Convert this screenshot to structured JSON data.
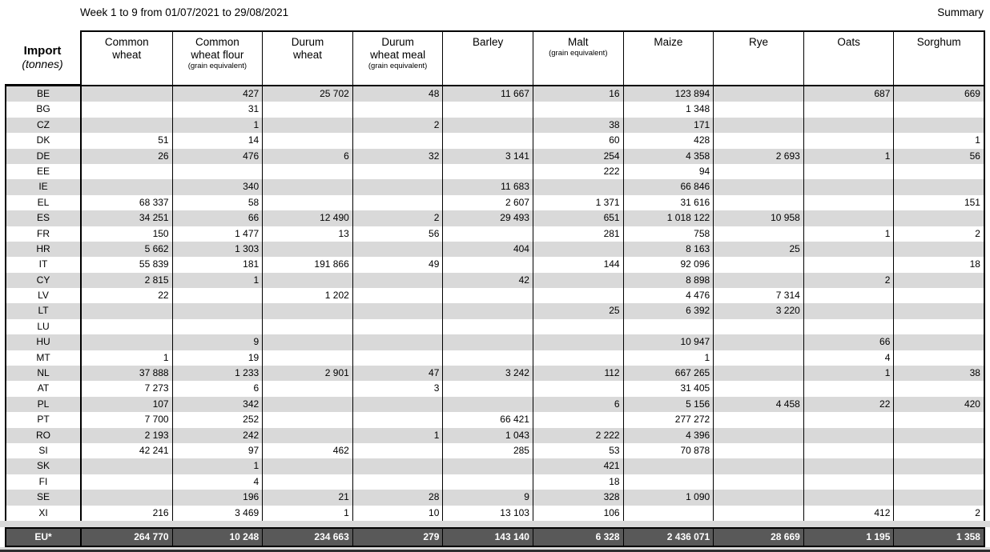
{
  "page": {
    "title": "Week 1 to 9 from 01/07/2021 to 29/08/2021",
    "summary": "Summary"
  },
  "table": {
    "corner_title": "Import",
    "corner_unit": "(tonnes)",
    "columns": [
      {
        "label": "Common\nwheat",
        "sub": ""
      },
      {
        "label": "Common\nwheat flour",
        "sub": "(grain equivalent)"
      },
      {
        "label": "Durum\nwheat",
        "sub": ""
      },
      {
        "label": "Durum\nwheat meal",
        "sub": "(grain equivalent)"
      },
      {
        "label": "Barley",
        "sub": ""
      },
      {
        "label": "Malt",
        "sub": "(grain equivalent)"
      },
      {
        "label": "Maize",
        "sub": ""
      },
      {
        "label": "Rye",
        "sub": ""
      },
      {
        "label": "Oats",
        "sub": ""
      },
      {
        "label": "Sorghum",
        "sub": ""
      }
    ],
    "rows": [
      {
        "code": "BE",
        "values": [
          "",
          "427",
          "25 702",
          "48",
          "11 667",
          "16",
          "123 894",
          "",
          "687",
          "669"
        ]
      },
      {
        "code": "BG",
        "values": [
          "",
          "31",
          "",
          "",
          "",
          "",
          "1 348",
          "",
          "",
          ""
        ]
      },
      {
        "code": "CZ",
        "values": [
          "",
          "1",
          "",
          "2",
          "",
          "38",
          "171",
          "",
          "",
          ""
        ]
      },
      {
        "code": "DK",
        "values": [
          "51",
          "14",
          "",
          "",
          "",
          "60",
          "428",
          "",
          "",
          "1"
        ]
      },
      {
        "code": "DE",
        "values": [
          "26",
          "476",
          "6",
          "32",
          "3 141",
          "254",
          "4 358",
          "2 693",
          "1",
          "56"
        ]
      },
      {
        "code": "EE",
        "values": [
          "",
          "",
          "",
          "",
          "",
          "222",
          "94",
          "",
          "",
          ""
        ]
      },
      {
        "code": "IE",
        "values": [
          "",
          "340",
          "",
          "",
          "11 683",
          "",
          "66 846",
          "",
          "",
          ""
        ]
      },
      {
        "code": "EL",
        "values": [
          "68 337",
          "58",
          "",
          "",
          "2 607",
          "1 371",
          "31 616",
          "",
          "",
          "151"
        ]
      },
      {
        "code": "ES",
        "values": [
          "34 251",
          "66",
          "12 490",
          "2",
          "29 493",
          "651",
          "1 018 122",
          "10 958",
          "",
          ""
        ]
      },
      {
        "code": "FR",
        "values": [
          "150",
          "1 477",
          "13",
          "56",
          "",
          "281",
          "758",
          "",
          "1",
          "2"
        ]
      },
      {
        "code": "HR",
        "values": [
          "5 662",
          "1 303",
          "",
          "",
          "404",
          "",
          "8 163",
          "25",
          "",
          ""
        ]
      },
      {
        "code": "IT",
        "values": [
          "55 839",
          "181",
          "191 866",
          "49",
          "",
          "144",
          "92 096",
          "",
          "",
          "18"
        ]
      },
      {
        "code": "CY",
        "values": [
          "2 815",
          "1",
          "",
          "",
          "42",
          "",
          "8 898",
          "",
          "2",
          ""
        ]
      },
      {
        "code": "LV",
        "values": [
          "22",
          "",
          "1 202",
          "",
          "",
          "",
          "4 476",
          "7 314",
          "",
          ""
        ]
      },
      {
        "code": "LT",
        "values": [
          "",
          "",
          "",
          "",
          "",
          "25",
          "6 392",
          "3 220",
          "",
          ""
        ]
      },
      {
        "code": "LU",
        "values": [
          "",
          "",
          "",
          "",
          "",
          "",
          "",
          "",
          "",
          ""
        ]
      },
      {
        "code": "HU",
        "values": [
          "",
          "9",
          "",
          "",
          "",
          "",
          "10 947",
          "",
          "66",
          ""
        ]
      },
      {
        "code": "MT",
        "values": [
          "1",
          "19",
          "",
          "",
          "",
          "",
          "1",
          "",
          "4",
          ""
        ]
      },
      {
        "code": "NL",
        "values": [
          "37 888",
          "1 233",
          "2 901",
          "47",
          "3 242",
          "112",
          "667 265",
          "",
          "1",
          "38"
        ]
      },
      {
        "code": "AT",
        "values": [
          "7 273",
          "6",
          "",
          "3",
          "",
          "",
          "31 405",
          "",
          "",
          ""
        ]
      },
      {
        "code": "PL",
        "values": [
          "107",
          "342",
          "",
          "",
          "",
          "6",
          "5 156",
          "4 458",
          "22",
          "420"
        ]
      },
      {
        "code": "PT",
        "values": [
          "7 700",
          "252",
          "",
          "",
          "66 421",
          "",
          "277 272",
          "",
          "",
          ""
        ]
      },
      {
        "code": "RO",
        "values": [
          "2 193",
          "242",
          "",
          "1",
          "1 043",
          "2 222",
          "4 396",
          "",
          "",
          ""
        ]
      },
      {
        "code": "SI",
        "values": [
          "42 241",
          "97",
          "462",
          "",
          "285",
          "53",
          "70 878",
          "",
          "",
          ""
        ]
      },
      {
        "code": "SK",
        "values": [
          "",
          "1",
          "",
          "",
          "",
          "421",
          "",
          "",
          "",
          ""
        ]
      },
      {
        "code": "FI",
        "values": [
          "",
          "4",
          "",
          "",
          "",
          "18",
          "",
          "",
          "",
          ""
        ]
      },
      {
        "code": "SE",
        "values": [
          "",
          "196",
          "21",
          "28",
          "9",
          "328",
          "1 090",
          "",
          "",
          ""
        ]
      },
      {
        "code": "XI",
        "values": [
          "216",
          "3 469",
          "1",
          "10",
          "13 103",
          "106",
          "",
          "",
          "412",
          "2"
        ]
      }
    ],
    "total": {
      "code": "EU*",
      "values": [
        "264 770",
        "10 248",
        "234 663",
        "279",
        "143 140",
        "6 328",
        "2 436 071",
        "28 669",
        "1 195",
        "1 358"
      ]
    }
  },
  "colors": {
    "stripe": "#d9d9d9",
    "total_bg": "#595959",
    "total_text": "#ffffff",
    "border": "#000000"
  }
}
